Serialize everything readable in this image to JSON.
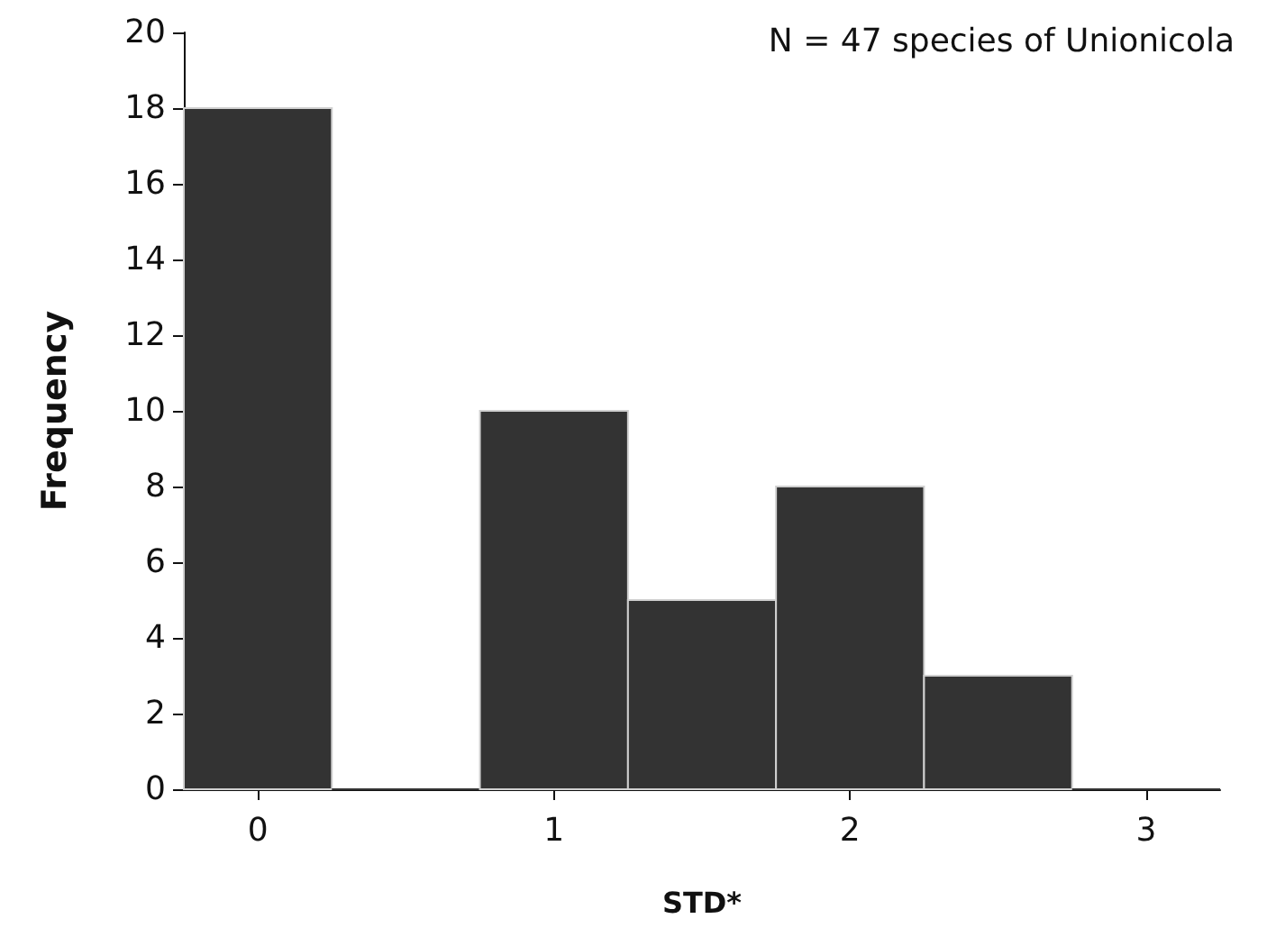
{
  "chart_data": {
    "type": "histogram",
    "bins": [
      -0.25,
      0.25,
      0.75,
      1.25,
      1.75,
      2.25,
      2.75,
      3.25
    ],
    "values": [
      18,
      0,
      10,
      5,
      8,
      3,
      0
    ],
    "color": "#333333",
    "xlabel": "STD*",
    "ylabel": "Frequency",
    "xlim": [
      -0.25,
      3.25
    ],
    "xticks": [
      0,
      1,
      2,
      3
    ],
    "ylim": [
      0,
      20
    ],
    "yticks": [
      0,
      2,
      4,
      6,
      8,
      10,
      12,
      14,
      16,
      18,
      20
    ],
    "annotations": [
      "N = 47 species of Unionicola"
    ]
  }
}
